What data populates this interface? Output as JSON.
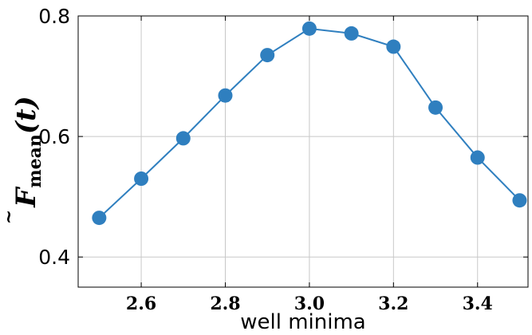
{
  "chart_data": {
    "type": "line",
    "x": [
      2.5,
      2.6,
      2.7,
      2.8,
      2.9,
      3.0,
      3.1,
      3.2,
      3.3,
      3.4,
      3.5
    ],
    "series": [
      {
        "values": [
          0.465,
          0.53,
          0.597,
          0.668,
          0.735,
          0.779,
          0.771,
          0.749,
          0.648,
          0.565,
          0.494
        ]
      }
    ],
    "xlabel": "well minima",
    "ylabel": {
      "tilde": "~",
      "symbol": "F",
      "subscript": "mean",
      "args": "(t)"
    },
    "xlim": [
      2.45,
      3.52
    ],
    "ylim": [
      0.35,
      0.8
    ],
    "xticks": [
      2.6,
      2.8,
      3.0,
      3.2,
      3.4
    ],
    "xtick_labels": [
      "2.6",
      "2.8",
      "3.0",
      "3.2",
      "3.4"
    ],
    "yticks": [
      0.4,
      0.6,
      0.8
    ],
    "ytick_labels": [
      "0.4",
      "0.6",
      "0.8"
    ],
    "grid": true,
    "color": "#2f7fbf"
  }
}
